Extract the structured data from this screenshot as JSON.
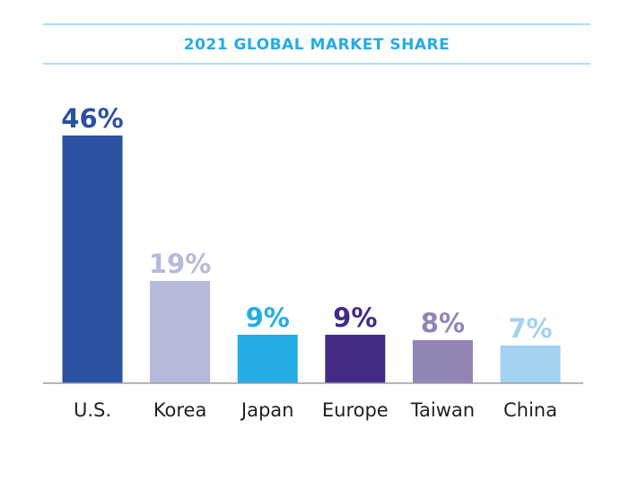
{
  "chart_data": {
    "type": "bar",
    "title": "2021 GLOBAL MARKET SHARE",
    "categories": [
      "U.S.",
      "Korea",
      "Japan",
      "Europe",
      "Taiwan",
      "China"
    ],
    "values": [
      46,
      19,
      9,
      9,
      8,
      7
    ],
    "value_labels": [
      "46%",
      "19%",
      "9%",
      "9%",
      "8%",
      "7%"
    ],
    "bar_colors": [
      "#2B51A1",
      "#B7B9DC",
      "#23ADE4",
      "#432B86",
      "#9384B6",
      "#A2D2F0"
    ],
    "ylim": [
      0,
      46
    ],
    "grid": false,
    "legend": "none"
  },
  "colors": {
    "title": "#23ADE4",
    "rule": "#8FD6F2",
    "baseline": "#9E9E9E"
  }
}
